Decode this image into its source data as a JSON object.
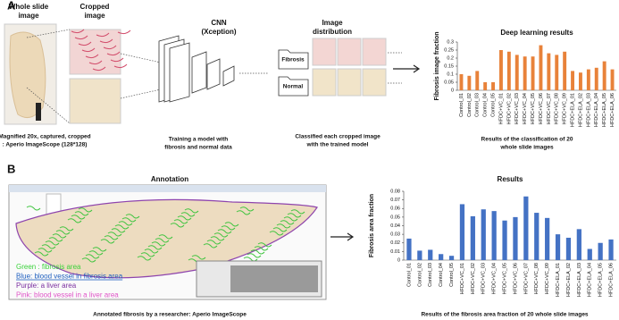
{
  "panel_a": {
    "label": "A",
    "whole_slide": [
      "Whole slide",
      "image"
    ],
    "cropped": [
      "Cropped",
      "image"
    ],
    "cnn": [
      "CNN",
      "(Xception)"
    ],
    "distribution": [
      "Image",
      "distribution"
    ],
    "folders": [
      "Fibrosis",
      "Normal"
    ],
    "captions": {
      "crop": [
        "Magnified 20x, captured, cropped",
        ": Aperio ImageScope (128*128)"
      ],
      "train": [
        "Training a model with",
        "fibrosis and normal data"
      ],
      "classify": [
        "Classified each cropped image",
        "with the trained model"
      ],
      "results": [
        "Results of the classification of 20",
        "whole slide images"
      ]
    }
  },
  "panel_b": {
    "label": "B",
    "annotation": "Annotation",
    "legend": [
      "Green : fibrosis area",
      "Blue: blood vessel in fibrosis area",
      "Purple: a liver area",
      "Pink: blood vessel in a liver area"
    ],
    "caption_left": "Annotated fibrosis by a researcher: Aperio ImageScope",
    "caption_right": "Results of the fibrosis area fraction of 20 whole slide images"
  },
  "chart_data": [
    {
      "type": "bar",
      "title": "Deep learning results",
      "y_label": "Fibrosis image fraction",
      "categories": [
        "Control_01",
        "Control_02",
        "Control_03",
        "Control_04",
        "Control_05",
        "HFDC+VC_01",
        "HFDC+VC_02",
        "HFDC+VC_03",
        "HFDC+VC_04",
        "HFDC+VC_05",
        "HFDC+VC_06",
        "HFDC+VC_07",
        "HFDC+VC_08",
        "HFDC+VC_09",
        "HFDC+ELA_01",
        "HFDC+ELA_02",
        "HFDC+ELA_03",
        "HFDC+ELA_04",
        "HFDC+ELA_05",
        "HFDC+ELA_06"
      ],
      "values": [
        0.1,
        0.09,
        0.12,
        0.05,
        0.05,
        0.25,
        0.24,
        0.22,
        0.21,
        0.21,
        0.28,
        0.23,
        0.22,
        0.24,
        0.12,
        0.11,
        0.13,
        0.14,
        0.18,
        0.13
      ],
      "color": "#e8823a",
      "ylim": [
        0,
        0.3
      ],
      "yticks": [
        0,
        0.05,
        0.1,
        0.15,
        0.2,
        0.25,
        0.3
      ],
      "grid": false
    },
    {
      "type": "bar",
      "title": "Results",
      "y_label": "Fibrosis area fraction",
      "categories": [
        "Control_01",
        "Control_02",
        "Control_03",
        "Control_04",
        "Control_05",
        "HFDC+VC_01",
        "HFDC+VC_02",
        "HFDC+VC_03",
        "HFDC+VC_04",
        "HFDC+VC_05",
        "HFDC+VC_06",
        "HFDC+VC_07",
        "HFDC+VC_08",
        "HFDC+VC_09",
        "HFDC+ELA_01",
        "HFDC+ELA_02",
        "HFDC+ELA_03",
        "HFDC+ELA_04",
        "HFDC+ELA_05",
        "HFDC+ELA_06"
      ],
      "values": [
        0.025,
        0.011,
        0.012,
        0.007,
        0.005,
        0.065,
        0.051,
        0.059,
        0.057,
        0.046,
        0.05,
        0.074,
        0.055,
        0.049,
        0.03,
        0.026,
        0.036,
        0.013,
        0.02,
        0.024
      ],
      "color": "#4472c4",
      "ylim": [
        0,
        0.08
      ],
      "yticks": [
        0,
        0.01,
        0.02,
        0.03,
        0.04,
        0.05,
        0.06,
        0.07,
        0.08
      ],
      "grid": false
    }
  ]
}
